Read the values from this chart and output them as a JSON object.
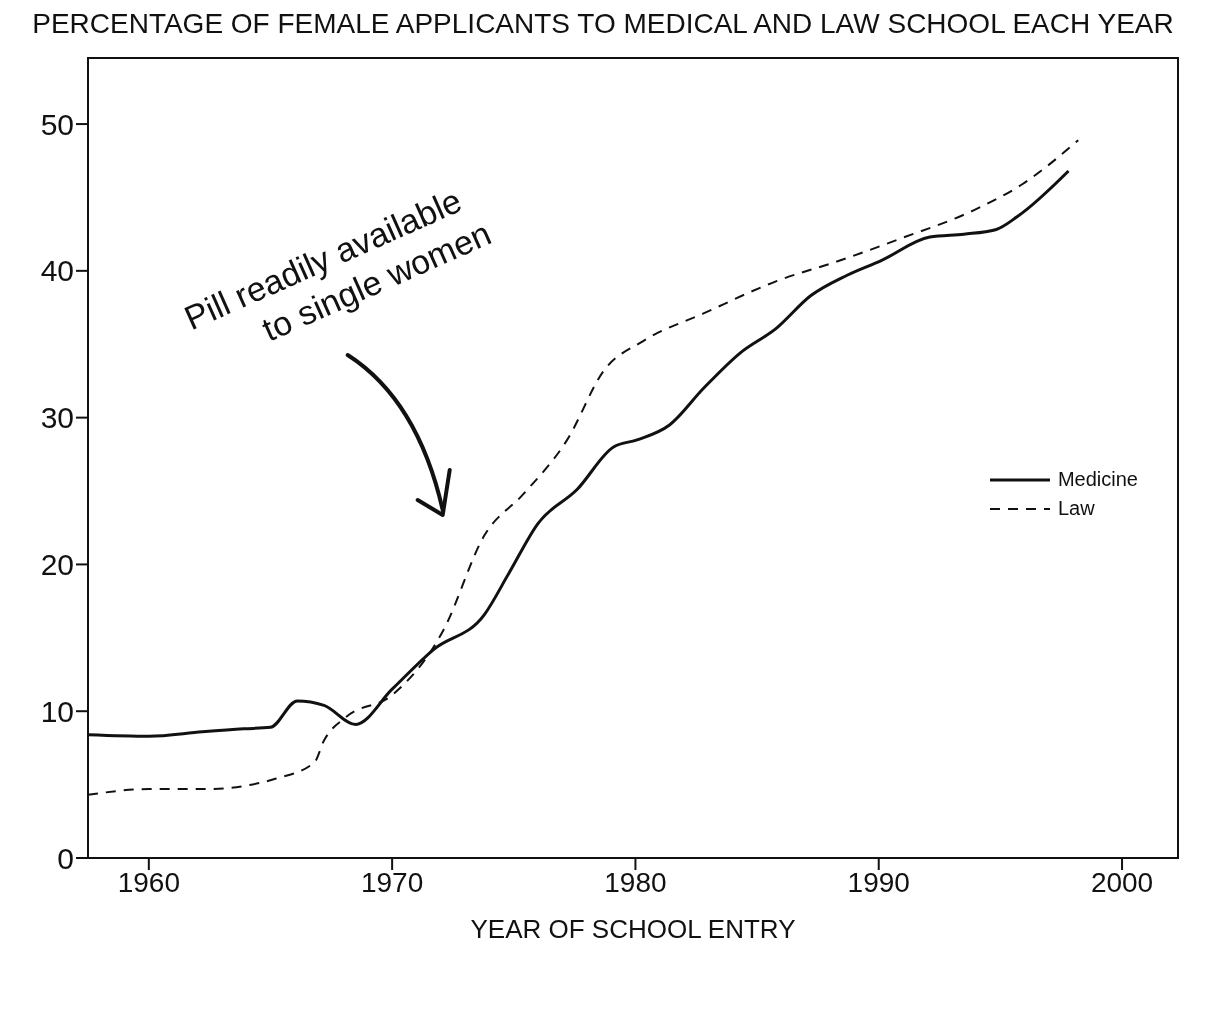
{
  "chart_data": {
    "type": "line",
    "title": "PERCENTAGE OF FEMALE APPLICANTS TO MEDICAL AND LAW SCHOOL EACH YEAR",
    "xlabel": "YEAR OF SCHOOL ENTRY",
    "xlim": [
      1957.5,
      2002.3
    ],
    "xticks": [
      1960,
      1970,
      1980,
      1990,
      2000
    ],
    "ylim": [
      0,
      54.5
    ],
    "yticks": [
      0,
      10,
      20,
      30,
      40,
      50
    ],
    "legend": "right",
    "marker": "none",
    "series": [
      {
        "name": "Medicine",
        "color": "#111111",
        "line_style": "solid",
        "x": [
          1957.5,
          1960,
          1962.2,
          1963.9,
          1965,
          1966.1,
          1967.2,
          1968.5,
          1970,
          1971.7,
          1973.8,
          1974.8,
          1976,
          1977.6,
          1979.1,
          1980.1,
          1981.4,
          1982.8,
          1984.3,
          1985.8,
          1987.2,
          1988.7,
          1990.1,
          1992.1,
          1993.5,
          1994.8,
          1995.7,
          1997.8
        ],
        "values": [
          8.4,
          8.3,
          8.6,
          8.8,
          8.9,
          10.7,
          10.4,
          9.1,
          11.5,
          14.2,
          16.6,
          19.4,
          22.8,
          25.1,
          28,
          28.5,
          29.5,
          32,
          34.4,
          36.1,
          38.3,
          39.7,
          40.7,
          42.3,
          42.5,
          42.8,
          43.7,
          46.8
        ]
      },
      {
        "name": "Law",
        "color": "#111111",
        "line_style": "dashed",
        "x": [
          1957.5,
          1960,
          1962.6,
          1963.9,
          1965.2,
          1966.8,
          1967.2,
          1968.1,
          1970,
          1972.1,
          1973.8,
          1975.4,
          1977.2,
          1978.7,
          1980.3,
          1982.8,
          1985.8,
          1988.4,
          1990.9,
          1994,
          1995.9,
          1998.2
        ],
        "values": [
          4.3,
          4.7,
          4.7,
          4.9,
          5.4,
          6.5,
          8,
          9.6,
          11.1,
          15.5,
          22,
          24.8,
          28.5,
          33.2,
          35.2,
          37.1,
          39.3,
          40.7,
          42.2,
          44.2,
          45.9,
          48.9
        ]
      }
    ],
    "annotations": [
      "Pill readily available to single women"
    ]
  }
}
